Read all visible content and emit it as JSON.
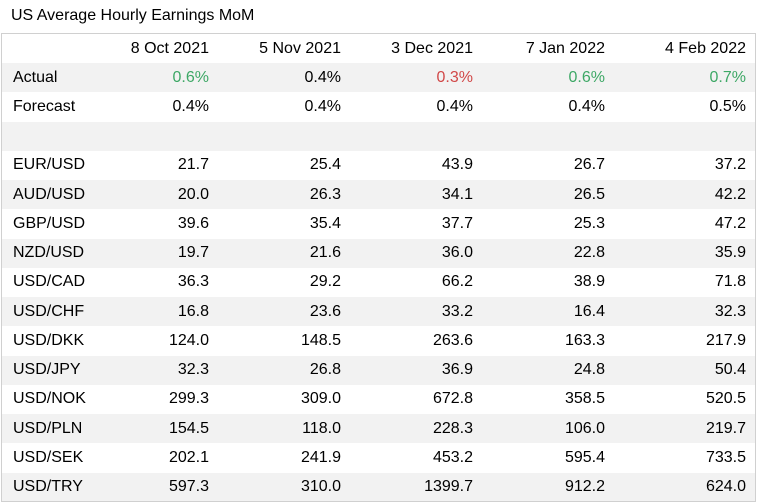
{
  "title": "US Average Hourly Earnings MoM",
  "columns": [
    "8 Oct 2021",
    "5 Nov 2021",
    "3 Dec 2021",
    "7 Jan 2022",
    "4 Feb 2022"
  ],
  "colors": {
    "positive": "#3ea866",
    "negative": "#d14848",
    "band": "#f2f2f2"
  },
  "actual": {
    "label": "Actual",
    "values": [
      "0.6%",
      "0.4%",
      "0.3%",
      "0.6%",
      "0.7%"
    ],
    "status": [
      "up",
      "neutral",
      "down",
      "up",
      "up"
    ]
  },
  "forecast": {
    "label": "Forecast",
    "values": [
      "0.4%",
      "0.4%",
      "0.4%",
      "0.4%",
      "0.5%"
    ]
  },
  "pairs": [
    {
      "label": "EUR/USD",
      "values": [
        "21.7",
        "25.4",
        "43.9",
        "26.7",
        "37.2"
      ]
    },
    {
      "label": "AUD/USD",
      "values": [
        "20.0",
        "26.3",
        "34.1",
        "26.5",
        "42.2"
      ]
    },
    {
      "label": "GBP/USD",
      "values": [
        "39.6",
        "35.4",
        "37.7",
        "25.3",
        "47.2"
      ]
    },
    {
      "label": "NZD/USD",
      "values": [
        "19.7",
        "21.6",
        "36.0",
        "22.8",
        "35.9"
      ]
    },
    {
      "label": "USD/CAD",
      "values": [
        "36.3",
        "29.2",
        "66.2",
        "38.9",
        "71.8"
      ]
    },
    {
      "label": "USD/CHF",
      "values": [
        "16.8",
        "23.6",
        "33.2",
        "16.4",
        "32.3"
      ]
    },
    {
      "label": "USD/DKK",
      "values": [
        "124.0",
        "148.5",
        "263.6",
        "163.3",
        "217.9"
      ]
    },
    {
      "label": "USD/JPY",
      "values": [
        "32.3",
        "26.8",
        "36.9",
        "24.8",
        "50.4"
      ]
    },
    {
      "label": "USD/NOK",
      "values": [
        "299.3",
        "309.0",
        "672.8",
        "358.5",
        "520.5"
      ]
    },
    {
      "label": "USD/PLN",
      "values": [
        "154.5",
        "118.0",
        "228.3",
        "106.0",
        "219.7"
      ]
    },
    {
      "label": "USD/SEK",
      "values": [
        "202.1",
        "241.9",
        "453.2",
        "595.4",
        "733.5"
      ]
    },
    {
      "label": "USD/TRY",
      "values": [
        "597.3",
        "310.0",
        "1399.7",
        "912.2",
        "624.0"
      ]
    }
  ]
}
